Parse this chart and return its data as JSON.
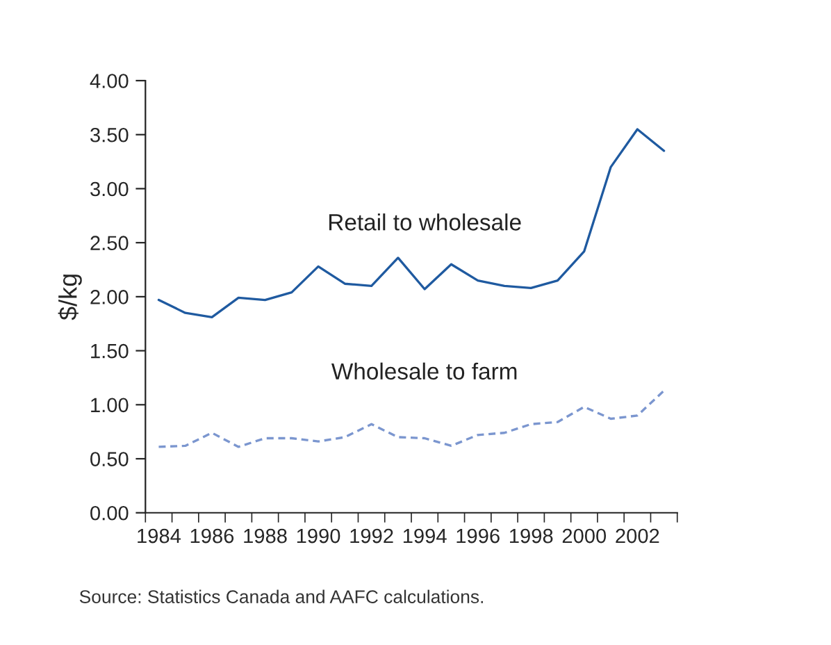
{
  "chart_data": {
    "type": "line",
    "ylabel": "$/kg",
    "categories": [
      "1984",
      null,
      "1986",
      null,
      "1988",
      null,
      "1990",
      null,
      "1992",
      null,
      "1994",
      null,
      "1996",
      null,
      "1998",
      null,
      "2000",
      null,
      "2002",
      null
    ],
    "series": [
      {
        "name": "Retail to wholesale",
        "color": "#1f5aa0",
        "line_style": "solid",
        "values": [
          1.97,
          1.85,
          1.81,
          1.99,
          1.97,
          2.04,
          2.28,
          2.12,
          2.1,
          2.36,
          2.07,
          2.3,
          2.15,
          2.1,
          2.08,
          2.15,
          2.42,
          3.2,
          3.55,
          3.35
        ]
      },
      {
        "name": "Wholesale to farm",
        "color": "#7b96cf",
        "line_style": "dashed",
        "values": [
          0.61,
          0.62,
          0.74,
          0.61,
          0.69,
          0.69,
          0.66,
          0.7,
          0.82,
          0.7,
          0.69,
          0.62,
          0.72,
          0.74,
          0.82,
          0.84,
          0.98,
          0.87,
          0.9,
          1.13
        ]
      }
    ],
    "ylim": [
      0,
      4
    ],
    "yticks": [
      {
        "value": 0,
        "label": "0.00"
      },
      {
        "value": 0.5,
        "label": "0.50"
      },
      {
        "value": 1,
        "label": "1.00"
      },
      {
        "value": 1.5,
        "label": "1.50"
      },
      {
        "value": 2,
        "label": "2.00"
      },
      {
        "value": 2.5,
        "label": "2.50"
      },
      {
        "value": 3,
        "label": "3.00"
      },
      {
        "value": 3.5,
        "label": "3.50"
      },
      {
        "value": 4,
        "label": "4.00"
      }
    ],
    "grid": false,
    "annotations": [
      "Source: Statistics Canada and AAFC calculations."
    ]
  }
}
